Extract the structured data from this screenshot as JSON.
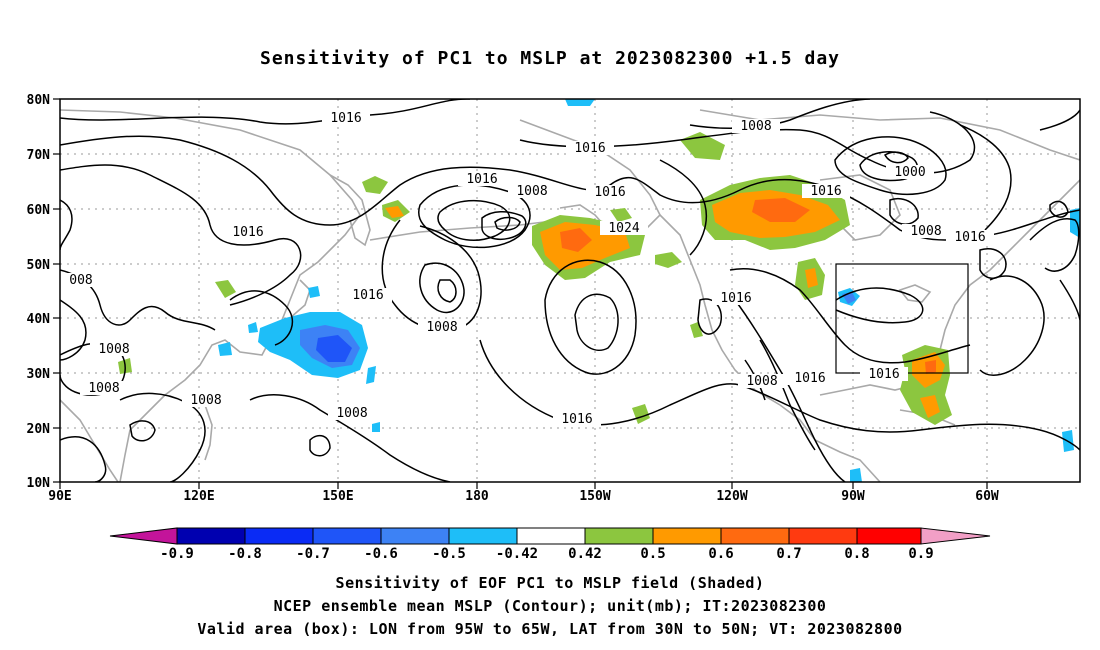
{
  "title": "Sensitivity of PC1 to MSLP at 2023082300 +1.5 day",
  "lat_ticks": [
    "80N",
    "70N",
    "60N",
    "50N",
    "40N",
    "30N",
    "20N",
    "10N"
  ],
  "lon_ticks": [
    "90E",
    "120E",
    "150E",
    "180",
    "150W",
    "120W",
    "90W",
    "60W"
  ],
  "map": {
    "lon_range": [
      90,
      310
    ],
    "lat_range": [
      10,
      80
    ],
    "valid_box": {
      "lon": [
        265,
        295
      ],
      "lat": [
        30,
        50
      ]
    }
  },
  "contour_labels": [
    "1016",
    "1016",
    "1008",
    "1016",
    "1008",
    "1016",
    "1000",
    "1008",
    "1016",
    "1016",
    "1016",
    "1024",
    "1016",
    "1008",
    "008",
    "1008",
    "1008",
    "1008",
    "1016",
    "1008",
    "1008",
    "1016",
    "1016",
    "1016"
  ],
  "colorbar": {
    "labels": [
      "-0.9",
      "-0.8",
      "-0.7",
      "-0.6",
      "-0.5",
      "-0.42",
      "0.42",
      "0.5",
      "0.6",
      "0.7",
      "0.8",
      "0.9"
    ],
    "colors": [
      "#0000b0",
      "#0a2bf5",
      "#1f55f8",
      "#3d82f5",
      "#1ebef8",
      "#ffffff",
      "#8cc63f",
      "#ff9a00",
      "#ff6a10",
      "#ff3a10",
      "#ff0000"
    ],
    "low_end_color": "#c3149a",
    "high_end_color": "#f29fc6"
  },
  "footer": {
    "line1": "Sensitivity of EOF PC1 to MSLP field (Shaded)",
    "line2": "NCEP ensemble mean MSLP (Contour); unit(mb); IT:2023082300",
    "line3": "Valid area (box): LON from 95W to 65W, LAT from 30N to 50N; VT: 2023082800"
  }
}
